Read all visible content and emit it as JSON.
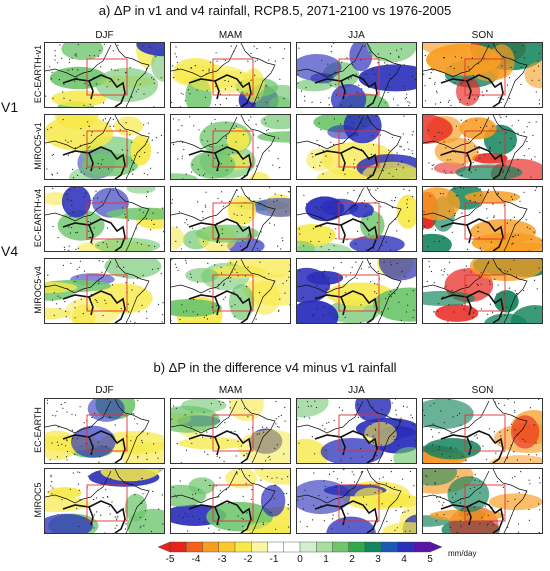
{
  "section_a": {
    "title": "a) ΔP in v1 and v4 rainfall, RCP8.5, 2071-2100 vs 1976-2005",
    "columns": [
      "DJF",
      "MAM",
      "JJA",
      "SON"
    ],
    "groups": [
      {
        "label": "V1",
        "rows": [
          "EC-EARTH-v1",
          "MIROC5-v1"
        ]
      },
      {
        "label": "V4",
        "rows": [
          "EC-EARTH-v4",
          "MIROC5-v4"
        ]
      }
    ]
  },
  "section_b": {
    "title": "b) ΔP in the difference v4 minus v1 rainfall",
    "columns": [
      "DJF",
      "MAM",
      "JJA",
      "SON"
    ],
    "rows": [
      "EC-EARTH",
      "MIROC5"
    ]
  },
  "colorbar": {
    "ticks": [
      "-5",
      "-4",
      "-3",
      "-2",
      "-1",
      "0",
      "1",
      "2",
      "3",
      "4",
      "5"
    ],
    "units": "mm/day",
    "colors": [
      "#e8211b",
      "#f2601c",
      "#f89d23",
      "#fbc830",
      "#f7e94a",
      "#fbf6a4",
      "#ffffff",
      "#ffffff",
      "#d4efcf",
      "#a9dea2",
      "#6ec66d",
      "#2fa94b",
      "#14855c",
      "#1a59b5",
      "#2a2fbb",
      "#5a14a6"
    ]
  },
  "map_colors": {
    "dry": "#f7e94a",
    "dry_strong": "#f89d23",
    "very_dry": "#e8211b",
    "wet": "#6ec66d",
    "wet_strong": "#14855c",
    "very_wet": "#2a2fbb",
    "box": "#e03030",
    "coast": "#111111"
  }
}
